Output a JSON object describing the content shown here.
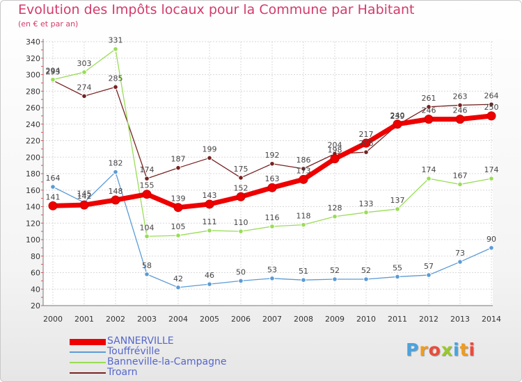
{
  "title": "Evolution des Impôts locaux pour la Commune par Habitant",
  "subtitle": "(en € et par an)",
  "logo_text": "Proxiti",
  "chart_data": {
    "type": "line",
    "x": [
      "2000",
      "2001",
      "2002",
      "2003",
      "2004",
      "2005",
      "2006",
      "2007",
      "2008",
      "2009",
      "2010",
      "2011",
      "2012",
      "2013",
      "2014"
    ],
    "ylim": [
      20,
      340
    ],
    "yticks": [
      20,
      40,
      60,
      80,
      100,
      120,
      140,
      160,
      180,
      200,
      220,
      240,
      260,
      280,
      300,
      320,
      340
    ],
    "grid": true,
    "legend_position": "bottom-left",
    "series": [
      {
        "name": "SANNERVILLE",
        "color": "#ee0000",
        "values": [
          141,
          142,
          148,
          155,
          139,
          143,
          152,
          163,
          173,
          198,
          217,
          240,
          246,
          246,
          250
        ]
      },
      {
        "name": "Touffréville",
        "color": "#5b9bd5",
        "values": [
          164,
          145,
          182,
          58,
          42,
          46,
          50,
          53,
          51,
          52,
          52,
          55,
          57,
          73,
          90
        ]
      },
      {
        "name": "Banneville-la-Campagne",
        "color": "#99dd55",
        "values": [
          294,
          303,
          331,
          104,
          105,
          111,
          110,
          116,
          118,
          128,
          133,
          137,
          174,
          167,
          174
        ]
      },
      {
        "name": "Troarn",
        "color": "#772222",
        "values": [
          293,
          274,
          285,
          174,
          187,
          199,
          175,
          192,
          186,
          204,
          206,
          239,
          261,
          263,
          264
        ]
      }
    ]
  }
}
